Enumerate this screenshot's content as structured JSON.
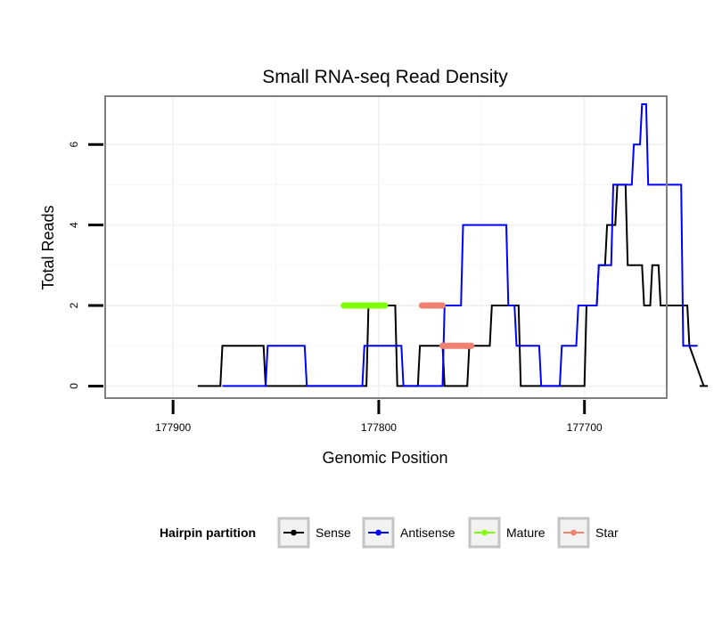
{
  "chart_data": {
    "type": "line",
    "title": "Small RNA-seq Read Density",
    "xlabel": "Genomic Position",
    "ylabel": "Total Reads",
    "x_reversed": true,
    "xlim": [
      177933,
      177660
    ],
    "ylim": [
      -0.3,
      7.2
    ],
    "x_ticks": [
      177900,
      177800,
      177700
    ],
    "x_tick_labels": [
      "177900",
      "177800",
      "177700"
    ],
    "y_ticks": [
      0,
      2,
      4,
      6
    ],
    "y_tick_labels": [
      "0",
      "2",
      "4",
      "6"
    ],
    "grid": true,
    "series": [
      {
        "name": "Sense",
        "color": "#000000",
        "x": [
          177888,
          177877,
          177876,
          177856,
          177855,
          177835,
          177834,
          177806,
          177805,
          177792,
          177791,
          177781,
          177780,
          177769,
          177768,
          177757,
          177756,
          177746,
          177745,
          177732,
          177731,
          177700,
          177699,
          177694,
          177693,
          177690,
          177689,
          177685,
          177684,
          177680,
          177679,
          177672,
          177671,
          177668,
          177667,
          177664,
          177663,
          177657,
          177656,
          177650,
          177649,
          177642,
          177641,
          177644,
          177643,
          177640
        ],
        "y": [
          0,
          0,
          1,
          1,
          0,
          0,
          0,
          0,
          2,
          2,
          0,
          0,
          1,
          1,
          0,
          0,
          1,
          1,
          2,
          2,
          0,
          0,
          2,
          2,
          3,
          3,
          4,
          4,
          5,
          5,
          3,
          3,
          2,
          2,
          3,
          3,
          2,
          2,
          2,
          2,
          1,
          0,
          0,
          0,
          0,
          0
        ]
      },
      {
        "name": "Antisense",
        "color": "#0000ff",
        "x": [
          177876,
          177855,
          177854,
          177836,
          177835,
          177808,
          177807,
          177789,
          177788,
          177769,
          177768,
          177760,
          177759,
          177753,
          177752,
          177738,
          177737,
          177734,
          177733,
          177722,
          177721,
          177720,
          177719,
          177712,
          177711,
          177704,
          177703,
          177694,
          177693,
          177687,
          177686,
          177677,
          177676,
          177673,
          177672,
          177670,
          177669,
          177662,
          177661,
          177653,
          177652,
          177645
        ],
        "y": [
          0,
          0,
          1,
          1,
          0,
          0,
          1,
          1,
          0,
          0,
          2,
          2,
          4,
          4,
          4,
          4,
          2,
          2,
          1,
          1,
          0,
          0,
          0,
          0,
          1,
          1,
          2,
          2,
          3,
          3,
          5,
          5,
          6,
          6,
          7,
          7,
          5,
          5,
          5,
          5,
          1,
          1
        ]
      },
      {
        "name": "Mature",
        "color": "#7fff00",
        "x": [
          177817,
          177797
        ],
        "y": [
          2,
          2
        ]
      },
      {
        "name": "Star",
        "color": "#f08070",
        "segments": [
          {
            "x": [
              177779,
              177769
            ],
            "y": [
              2,
              2
            ]
          },
          {
            "x": [
              177769,
              177755
            ],
            "y": [
              1,
              1
            ]
          }
        ]
      }
    ],
    "legend": {
      "title": "Hairpin partition",
      "position": "bottom",
      "entries": [
        {
          "label": "Sense",
          "color": "#000000"
        },
        {
          "label": "Antisense",
          "color": "#0000ff"
        },
        {
          "label": "Mature",
          "color": "#7fff00"
        },
        {
          "label": "Star",
          "color": "#f08070"
        }
      ]
    }
  }
}
